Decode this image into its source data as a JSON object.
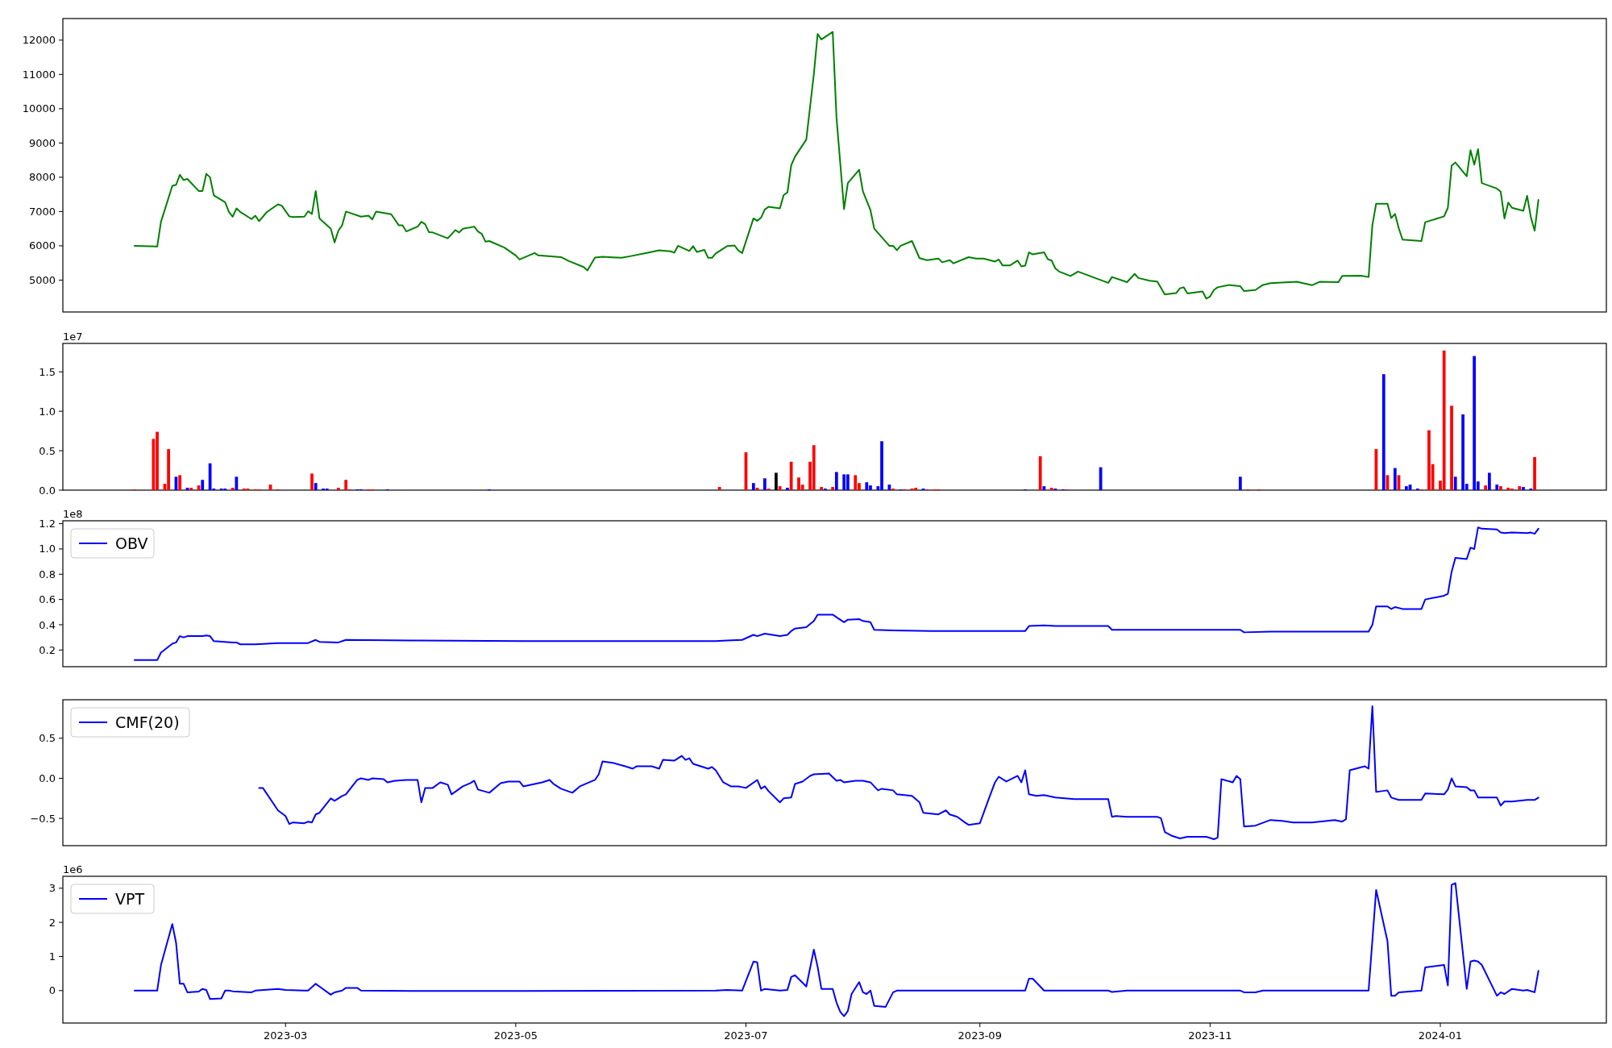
{
  "chart_data": [
    {
      "type": "line",
      "xlim": [
        "2023-01-01",
        "2024-02-14"
      ],
      "ylim": [
        4070,
        12630
      ],
      "yticks": [
        5000,
        6000,
        7000,
        8000,
        9000,
        10000,
        11000,
        12000
      ],
      "tick_labels": "y",
      "series": [
        {
          "color": "#008000",
          "x": [
            "2023-01-20",
            "2023-01-26",
            "2023-01-27",
            "2023-01-30",
            "2023-01-31",
            "2023-02-01",
            "2023-02-02",
            "2023-02-03",
            "2023-02-06",
            "2023-02-07",
            "2023-02-08",
            "2023-02-09",
            "2023-02-10",
            "2023-02-13",
            "2023-02-14",
            "2023-02-15",
            "2023-02-16",
            "2023-02-17",
            "2023-02-20",
            "2023-02-21",
            "2023-02-22",
            "2023-02-24",
            "2023-02-27",
            "2023-02-28",
            "2023-03-02",
            "2023-03-03",
            "2023-03-06",
            "2023-03-07",
            "2023-03-08",
            "2023-03-09",
            "2023-03-10",
            "2023-03-13",
            "2023-03-14",
            "2023-03-15",
            "2023-03-16",
            "2023-03-17",
            "2023-03-21",
            "2023-03-23",
            "2023-03-24",
            "2023-03-25",
            "2023-03-29",
            "2023-03-31",
            "2023-04-01",
            "2023-04-02",
            "2023-04-05",
            "2023-04-06",
            "2023-04-07",
            "2023-04-08",
            "2023-04-09",
            "2023-04-13",
            "2023-04-15",
            "2023-04-16",
            "2023-04-17",
            "2023-04-20",
            "2023-04-21",
            "2023-04-22",
            "2023-04-23",
            "2023-04-24",
            "2023-04-28",
            "2023-05-01",
            "2023-05-02",
            "2023-05-06",
            "2023-05-07",
            "2023-05-13",
            "2023-05-15",
            "2023-05-19",
            "2023-05-20",
            "2023-05-22",
            "2023-05-24",
            "2023-05-29",
            "2023-05-31",
            "2023-06-05",
            "2023-06-08",
            "2023-06-11",
            "2023-06-12",
            "2023-06-13",
            "2023-06-16",
            "2023-06-17",
            "2023-06-18",
            "2023-06-20",
            "2023-06-21",
            "2023-06-22",
            "2023-06-23",
            "2023-06-26",
            "2023-06-28",
            "2023-06-29",
            "2023-06-30",
            "2023-07-03",
            "2023-07-04",
            "2023-07-05",
            "2023-07-06",
            "2023-07-07",
            "2023-07-10",
            "2023-07-11",
            "2023-07-12",
            "2023-07-13",
            "2023-07-14",
            "2023-07-17",
            "2023-07-19",
            "2023-07-20",
            "2023-07-21",
            "2023-07-24",
            "2023-07-25",
            "2023-07-27",
            "2023-07-28",
            "2023-07-31",
            "2023-08-01",
            "2023-08-03",
            "2023-08-04",
            "2023-08-08",
            "2023-08-09",
            "2023-08-10",
            "2023-08-11",
            "2023-08-14",
            "2023-08-16",
            "2023-08-18",
            "2023-08-21",
            "2023-08-22",
            "2023-08-24",
            "2023-08-25",
            "2023-08-29",
            "2023-08-31",
            "2023-09-02",
            "2023-09-05",
            "2023-09-06",
            "2023-09-07",
            "2023-09-09",
            "2023-09-11",
            "2023-09-12",
            "2023-09-13",
            "2023-09-14",
            "2023-09-15",
            "2023-09-18",
            "2023-09-19",
            "2023-09-20",
            "2023-09-21",
            "2023-09-22",
            "2023-09-25",
            "2023-09-27",
            "2023-10-05",
            "2023-10-06",
            "2023-10-10",
            "2023-10-12",
            "2023-10-13",
            "2023-10-16",
            "2023-10-18",
            "2023-10-20",
            "2023-10-23",
            "2023-10-24",
            "2023-10-25",
            "2023-10-26",
            "2023-10-30",
            "2023-10-31",
            "2023-11-01",
            "2023-11-02",
            "2023-11-03",
            "2023-11-06",
            "2023-11-09",
            "2023-11-10",
            "2023-11-13",
            "2023-11-15",
            "2023-11-17",
            "2023-11-22",
            "2023-11-24",
            "2023-11-28",
            "2023-11-30",
            "2023-12-05",
            "2023-12-06",
            "2023-12-11",
            "2023-12-13",
            "2023-12-14",
            "2023-12-15",
            "2023-12-18",
            "2023-12-19",
            "2023-12-20",
            "2023-12-21",
            "2023-12-22",
            "2023-12-27",
            "2023-12-28",
            "2024-01-02",
            "2024-01-03",
            "2024-01-04",
            "2024-01-05",
            "2024-01-08",
            "2024-01-09",
            "2024-01-10",
            "2024-01-11",
            "2024-01-12",
            "2024-01-16",
            "2024-01-17",
            "2024-01-18",
            "2024-01-19",
            "2024-01-20",
            "2024-01-23",
            "2024-01-24",
            "2024-01-25",
            "2024-01-26",
            "2024-01-27"
          ],
          "values": [
            6000,
            5980,
            6700,
            7750,
            7780,
            8070,
            7920,
            7950,
            7600,
            7600,
            8100,
            8000,
            7470,
            7270,
            6990,
            6850,
            7090,
            6990,
            6780,
            6880,
            6720,
            6980,
            7210,
            7170,
            6860,
            6840,
            6850,
            7010,
            6930,
            7600,
            6800,
            6500,
            6100,
            6440,
            6600,
            7000,
            6850,
            6880,
            6770,
            7000,
            6920,
            6600,
            6600,
            6420,
            6560,
            6700,
            6630,
            6400,
            6390,
            6220,
            6460,
            6390,
            6500,
            6560,
            6420,
            6350,
            6120,
            6140,
            5950,
            5720,
            5600,
            5790,
            5720,
            5670,
            5560,
            5380,
            5280,
            5660,
            5680,
            5650,
            5690,
            5800,
            5870,
            5840,
            5800,
            6000,
            5850,
            5990,
            5820,
            5880,
            5650,
            5650,
            5780,
            5990,
            6010,
            5860,
            5790,
            6800,
            6730,
            6820,
            7060,
            7140,
            7090,
            7480,
            7560,
            8350,
            8600,
            9100,
            11010,
            12180,
            12020,
            12240,
            9740,
            7070,
            7830,
            8220,
            7590,
            7040,
            6500,
            6000,
            6000,
            5870,
            6000,
            6140,
            5640,
            5580,
            5630,
            5520,
            5580,
            5490,
            5670,
            5630,
            5630,
            5540,
            5600,
            5430,
            5430,
            5570,
            5400,
            5420,
            5810,
            5750,
            5810,
            5610,
            5570,
            5340,
            5250,
            5120,
            5250,
            4920,
            5090,
            4940,
            5180,
            5060,
            4980,
            4960,
            4580,
            4620,
            4760,
            4790,
            4610,
            4670,
            4460,
            4520,
            4710,
            4790,
            4860,
            4820,
            4680,
            4710,
            4860,
            4910,
            4940,
            4950,
            4850,
            4950,
            4940,
            5120,
            5130,
            5090,
            6600,
            7230,
            7230,
            6810,
            6930,
            6510,
            6180,
            6140,
            6690,
            6860,
            7110,
            8340,
            8430,
            8030,
            8790,
            8370,
            8820,
            7830,
            7670,
            7580,
            6800,
            7260,
            7110,
            7020,
            7460,
            6830,
            6440,
            7340
          ]
        }
      ]
    },
    {
      "type": "bar",
      "xlim": [
        "2023-01-01",
        "2024-02-14"
      ],
      "ylim": [
        0,
        1.86
      ],
      "yticks": [
        {
          "value": 0,
          "label": "0.0"
        },
        {
          "value": 0.5,
          "label": "0.5"
        },
        {
          "value": 1,
          "label": "1.0"
        },
        {
          "value": 1.5,
          "label": "1.5"
        }
      ],
      "tick_labels": "y",
      "annotations": [
        "1e7"
      ],
      "x": [
        "2023-01-20",
        "2023-01-25",
        "2023-01-26",
        "2023-01-28",
        "2023-01-29",
        "2023-01-31",
        "2023-02-01",
        "2023-02-03",
        "2023-02-04",
        "2023-02-06",
        "2023-02-07",
        "2023-02-09",
        "2023-02-10",
        "2023-02-12",
        "2023-02-13",
        "2023-02-15",
        "2023-02-16",
        "2023-02-18",
        "2023-02-19",
        "2023-02-21",
        "2023-02-22",
        "2023-02-25",
        "2023-02-27",
        "2023-03-08",
        "2023-03-09",
        "2023-03-11",
        "2023-03-12",
        "2023-03-15",
        "2023-03-17",
        "2023-03-18",
        "2023-03-20",
        "2023-03-21",
        "2023-03-23",
        "2023-03-24",
        "2023-03-28",
        "2023-04-24",
        "2023-06-24",
        "2023-07-01",
        "2023-07-03",
        "2023-07-04",
        "2023-07-06",
        "2023-07-07",
        "2023-07-09",
        "2023-07-10",
        "2023-07-12",
        "2023-07-13",
        "2023-07-15",
        "2023-07-16",
        "2023-07-18",
        "2023-07-19",
        "2023-07-21",
        "2023-07-22",
        "2023-07-24",
        "2023-07-25",
        "2023-07-27",
        "2023-07-28",
        "2023-07-30",
        "2023-07-31",
        "2023-08-02",
        "2023-08-03",
        "2023-08-05",
        "2023-08-06",
        "2023-08-08",
        "2023-08-09",
        "2023-08-11",
        "2023-08-12",
        "2023-08-14",
        "2023-08-15",
        "2023-08-17",
        "2023-08-18",
        "2023-08-20",
        "2023-08-21",
        "2023-09-13",
        "2023-09-17",
        "2023-09-18",
        "2023-09-20",
        "2023-09-21",
        "2023-09-23",
        "2023-09-24",
        "2023-10-03",
        "2023-11-09",
        "2023-11-11",
        "2023-11-14",
        "2023-12-15",
        "2023-12-17",
        "2023-12-18",
        "2023-12-20",
        "2023-12-21",
        "2023-12-23",
        "2023-12-24",
        "2023-12-26",
        "2023-12-27",
        "2023-12-29",
        "2023-12-30",
        "2024-01-01",
        "2024-01-02",
        "2024-01-04",
        "2024-01-05",
        "2024-01-07",
        "2024-01-08",
        "2024-01-10",
        "2024-01-11",
        "2024-01-13",
        "2024-01-14",
        "2024-01-16",
        "2024-01-17",
        "2024-01-19",
        "2024-01-20",
        "2024-01-22",
        "2024-01-23",
        "2024-01-25",
        "2024-01-26"
      ],
      "values": [
        0.01,
        0.65,
        0.74,
        0.08,
        0.52,
        0.17,
        0.19,
        0.03,
        0.03,
        0.06,
        0.13,
        0.34,
        0.02,
        0.02,
        0.02,
        0.03,
        0.17,
        0.02,
        0.02,
        0.01,
        0.01,
        0.07,
        0.01,
        0.21,
        0.09,
        0.02,
        0.02,
        0.03,
        0.13,
        0.01,
        0.01,
        0.01,
        0.01,
        0.01,
        0.01,
        0.01,
        0.04,
        0.48,
        0.09,
        0.03,
        0.15,
        0.02,
        0.22,
        0.05,
        0.03,
        0.36,
        0.16,
        0.07,
        0.36,
        0.57,
        0.04,
        0.02,
        0.04,
        0.23,
        0.2,
        0.2,
        0.19,
        0.09,
        0.1,
        0.06,
        0.05,
        0.62,
        0.07,
        0.02,
        0.01,
        0.01,
        0.02,
        0.03,
        0.02,
        0.01,
        0.01,
        0.01,
        0.01,
        0.43,
        0.05,
        0.03,
        0.02,
        0.01,
        0.01,
        0.29,
        0.17,
        0.01,
        0.01,
        0.52,
        1.47,
        0.19,
        0.28,
        0.19,
        0.05,
        0.07,
        0.02,
        0.01,
        0.76,
        0.33,
        0.12,
        1.77,
        1.07,
        0.17,
        0.96,
        0.08,
        1.7,
        0.11,
        0.06,
        0.22,
        0.07,
        0.05,
        0.03,
        0.02,
        0.05,
        0.04,
        0.02,
        0.42
      ],
      "colors": [
        "#ff0000",
        "#ff0000",
        "#ff0000",
        "#ff0000",
        "#ff0000",
        "#0000ff",
        "#ff0000",
        "#0000ff",
        "#ff0000",
        "#ff0000",
        "#0000ff",
        "#0000ff",
        "#0000ff",
        "#0000ff",
        "#0000ff",
        "#ff0000",
        "#0000ff",
        "#ff0000",
        "#ff0000",
        "#ff0000",
        "#ff0000",
        "#ff0000",
        "#ff0000",
        "#ff0000",
        "#0000ff",
        "#0000ff",
        "#0000ff",
        "#ff0000",
        "#ff0000",
        "#ff0000",
        "#0000ff",
        "#0000ff",
        "#ff0000",
        "#ff0000",
        "#0000ff",
        "#0000ff",
        "#ff0000",
        "#ff0000",
        "#0000ff",
        "#ff0000",
        "#0000ff",
        "#ff0000",
        "#000000",
        "#ff0000",
        "#0000ff",
        "#ff0000",
        "#ff0000",
        "#ff0000",
        "#ff0000",
        "#ff0000",
        "#ff0000",
        "#0000ff",
        "#ff0000",
        "#0000ff",
        "#0000ff",
        "#0000ff",
        "#ff0000",
        "#ff0000",
        "#0000ff",
        "#0000ff",
        "#0000ff",
        "#0000ff",
        "#0000ff",
        "#ff0000",
        "#0000ff",
        "#ff0000",
        "#ff0000",
        "#ff0000",
        "#0000ff",
        "#ff0000",
        "#ff0000",
        "#ff0000",
        "#0000ff",
        "#ff0000",
        "#0000ff",
        "#ff0000",
        "#0000ff",
        "#0000ff",
        "#ff0000",
        "#0000ff",
        "#0000ff",
        "#ff0000",
        "#ff0000",
        "#ff0000",
        "#0000ff",
        "#ff0000",
        "#0000ff",
        "#ff0000",
        "#0000ff",
        "#0000ff",
        "#0000ff",
        "#ff0000",
        "#ff0000",
        "#ff0000",
        "#ff0000",
        "#ff0000",
        "#ff0000",
        "#0000ff",
        "#0000ff",
        "#0000ff",
        "#0000ff",
        "#0000ff",
        "#ff0000",
        "#0000ff",
        "#0000ff",
        "#ff0000",
        "#ff0000",
        "#ff0000",
        "#ff0000",
        "#0000ff",
        "#0000ff",
        "#ff0000"
      ]
    },
    {
      "type": "line",
      "xlim": [
        "2023-01-01",
        "2024-02-14"
      ],
      "ylim": [
        0.068,
        1.223
      ],
      "yticks": [
        0.2,
        0.4,
        0.6,
        0.8,
        {
          "value": 1,
          "label": "1.0"
        },
        1.2
      ],
      "tick_labels": "y",
      "legend": "top left",
      "annotations": [
        "1e8"
      ],
      "series": [
        {
          "name": "OBV",
          "color": "#0000ff",
          "x": [
            "2023-01-20",
            "2023-01-26",
            "2023-01-27",
            "2023-01-30",
            "2023-01-31",
            "2023-02-01",
            "2023-02-02",
            "2023-02-03",
            "2023-02-06",
            "2023-02-07",
            "2023-02-08",
            "2023-02-09",
            "2023-02-10",
            "2023-02-15",
            "2023-02-16",
            "2023-02-17",
            "2023-02-21",
            "2023-02-27",
            "2023-03-07",
            "2023-03-09",
            "2023-03-10",
            "2023-03-15",
            "2023-03-17",
            "2023-04-05",
            "2023-05-03",
            "2023-05-30",
            "2023-06-23",
            "2023-06-26",
            "2023-06-30",
            "2023-07-03",
            "2023-07-04",
            "2023-07-06",
            "2023-07-10",
            "2023-07-12",
            "2023-07-13",
            "2023-07-14",
            "2023-07-17",
            "2023-07-19",
            "2023-07-20",
            "2023-07-24",
            "2023-07-25",
            "2023-07-27",
            "2023-07-28",
            "2023-07-31",
            "2023-08-01",
            "2023-08-03",
            "2023-08-04",
            "2023-08-09",
            "2023-08-19",
            "2023-09-13",
            "2023-09-14",
            "2023-09-18",
            "2023-09-21",
            "2023-10-05",
            "2023-10-06",
            "2023-11-09",
            "2023-11-10",
            "2023-11-17",
            "2023-12-13",
            "2023-12-14",
            "2023-12-15",
            "2023-12-18",
            "2023-12-19",
            "2023-12-20",
            "2023-12-22",
            "2023-12-27",
            "2023-12-28",
            "2024-01-02",
            "2024-01-03",
            "2024-01-04",
            "2024-01-05",
            "2024-01-08",
            "2024-01-09",
            "2024-01-10",
            "2024-01-11",
            "2024-01-12",
            "2024-01-16",
            "2024-01-17",
            "2024-01-18",
            "2024-01-20",
            "2024-01-24",
            "2024-01-25",
            "2024-01-26",
            "2024-01-27"
          ],
          "values": [
            0.12,
            0.12,
            0.18,
            0.25,
            0.26,
            0.31,
            0.3,
            0.31,
            0.31,
            0.31,
            0.315,
            0.31,
            0.27,
            0.26,
            0.26,
            0.245,
            0.245,
            0.255,
            0.255,
            0.28,
            0.265,
            0.26,
            0.28,
            0.275,
            0.27,
            0.27,
            0.27,
            0.275,
            0.28,
            0.32,
            0.31,
            0.33,
            0.31,
            0.32,
            0.35,
            0.37,
            0.38,
            0.43,
            0.48,
            0.48,
            0.46,
            0.42,
            0.44,
            0.445,
            0.43,
            0.42,
            0.36,
            0.355,
            0.35,
            0.35,
            0.39,
            0.395,
            0.39,
            0.39,
            0.36,
            0.36,
            0.34,
            0.345,
            0.345,
            0.4,
            0.545,
            0.545,
            0.525,
            0.54,
            0.525,
            0.525,
            0.6,
            0.63,
            0.645,
            0.82,
            0.93,
            0.92,
            1.01,
            1.0,
            1.17,
            1.16,
            1.155,
            1.13,
            1.125,
            1.13,
            1.125,
            1.13,
            1.12,
            1.16
          ]
        }
      ]
    },
    {
      "type": "line",
      "xlim": [
        "2023-01-01",
        "2024-02-14"
      ],
      "ylim": [
        -0.84,
        0.98
      ],
      "yticks": [
        {
          "value": -0.5,
          "label": "−0.5"
        },
        {
          "value": 0,
          "label": "0.0"
        },
        0.5
      ],
      "tick_labels": "y",
      "legend": "top left",
      "series": [
        {
          "name": "CMF(20)",
          "color": "#0000ff",
          "x": [
            "2023-02-22",
            "2023-02-23",
            "2023-02-27",
            "2023-03-01",
            "2023-03-02",
            "2023-03-03",
            "2023-03-06",
            "2023-03-07",
            "2023-03-08",
            "2023-03-09",
            "2023-03-10",
            "2023-03-13",
            "2023-03-14",
            "2023-03-16",
            "2023-03-17",
            "2023-03-20",
            "2023-03-21",
            "2023-03-23",
            "2023-03-24",
            "2023-03-27",
            "2023-03-28",
            "2023-03-30",
            "2023-04-02",
            "2023-04-05",
            "2023-04-06",
            "2023-04-07",
            "2023-04-09",
            "2023-04-11",
            "2023-04-13",
            "2023-04-14",
            "2023-04-17",
            "2023-04-19",
            "2023-04-20",
            "2023-04-21",
            "2023-04-24",
            "2023-04-27",
            "2023-04-29",
            "2023-05-02",
            "2023-05-03",
            "2023-05-06",
            "2023-05-08",
            "2023-05-10",
            "2023-05-11",
            "2023-05-13",
            "2023-05-16",
            "2023-05-18",
            "2023-05-22",
            "2023-05-23",
            "2023-05-24",
            "2023-05-27",
            "2023-05-30",
            "2023-06-01",
            "2023-06-02",
            "2023-06-06",
            "2023-06-08",
            "2023-06-09",
            "2023-06-12",
            "2023-06-14",
            "2023-06-15",
            "2023-06-16",
            "2023-06-17",
            "2023-06-21",
            "2023-06-22",
            "2023-06-23",
            "2023-06-25",
            "2023-06-27",
            "2023-06-29",
            "2023-07-01",
            "2023-07-04",
            "2023-07-05",
            "2023-07-06",
            "2023-07-07",
            "2023-07-10",
            "2023-07-11",
            "2023-07-13",
            "2023-07-14",
            "2023-07-16",
            "2023-07-18",
            "2023-07-19",
            "2023-07-23",
            "2023-07-25",
            "2023-07-26",
            "2023-07-27",
            "2023-07-30",
            "2023-08-01",
            "2023-08-03",
            "2023-08-05",
            "2023-08-06",
            "2023-08-09",
            "2023-08-10",
            "2023-08-14",
            "2023-08-16",
            "2023-08-17",
            "2023-08-21",
            "2023-08-23",
            "2023-08-24",
            "2023-08-26",
            "2023-08-28",
            "2023-08-29",
            "2023-09-01",
            "2023-09-03",
            "2023-09-05",
            "2023-09-06",
            "2023-09-08",
            "2023-09-11",
            "2023-09-12",
            "2023-09-13",
            "2023-09-14",
            "2023-09-16",
            "2023-09-18",
            "2023-09-21",
            "2023-09-26",
            "2023-10-05",
            "2023-10-06",
            "2023-10-07",
            "2023-10-10",
            "2023-10-18",
            "2023-10-19",
            "2023-10-20",
            "2023-10-22",
            "2023-10-24",
            "2023-10-26",
            "2023-10-31",
            "2023-11-02",
            "2023-11-03",
            "2023-11-04",
            "2023-11-07",
            "2023-11-08",
            "2023-11-09",
            "2023-11-10",
            "2023-11-13",
            "2023-11-17",
            "2023-11-20",
            "2023-11-23",
            "2023-11-28",
            "2023-12-04",
            "2023-12-06",
            "2023-12-07",
            "2023-12-08",
            "2023-12-12",
            "2023-12-13",
            "2023-12-14",
            "2023-12-15",
            "2023-12-18",
            "2023-12-19",
            "2023-12-21",
            "2023-12-27",
            "2023-12-28",
            "2024-01-02",
            "2024-01-03",
            "2024-01-04",
            "2024-01-05",
            "2024-01-08",
            "2024-01-09",
            "2024-01-10",
            "2024-01-11",
            "2024-01-16",
            "2024-01-17",
            "2024-01-18",
            "2024-01-20",
            "2024-01-24",
            "2024-01-26",
            "2024-01-27"
          ],
          "values": [
            -0.12,
            -0.12,
            -0.4,
            -0.47,
            -0.57,
            -0.55,
            -0.56,
            -0.54,
            -0.55,
            -0.45,
            -0.43,
            -0.25,
            -0.28,
            -0.22,
            -0.2,
            -0.02,
            0.0,
            -0.02,
            0.0,
            -0.01,
            -0.05,
            -0.03,
            -0.02,
            -0.02,
            -0.3,
            -0.12,
            -0.12,
            -0.05,
            -0.08,
            -0.2,
            -0.1,
            -0.06,
            -0.03,
            -0.14,
            -0.18,
            -0.06,
            -0.04,
            -0.04,
            -0.1,
            -0.07,
            -0.05,
            -0.02,
            -0.07,
            -0.13,
            -0.18,
            -0.1,
            -0.02,
            0.05,
            0.21,
            0.19,
            0.15,
            0.12,
            0.15,
            0.15,
            0.12,
            0.23,
            0.22,
            0.28,
            0.23,
            0.25,
            0.18,
            0.12,
            0.14,
            0.1,
            -0.05,
            -0.1,
            -0.1,
            -0.12,
            -0.02,
            -0.13,
            -0.1,
            -0.16,
            -0.3,
            -0.25,
            -0.24,
            -0.07,
            -0.04,
            0.03,
            0.05,
            0.06,
            -0.03,
            -0.02,
            -0.05,
            -0.03,
            -0.03,
            -0.05,
            -0.15,
            -0.13,
            -0.15,
            -0.2,
            -0.22,
            -0.3,
            -0.43,
            -0.45,
            -0.4,
            -0.45,
            -0.48,
            -0.55,
            -0.58,
            -0.56,
            -0.3,
            -0.05,
            0.02,
            -0.04,
            0.03,
            -0.05,
            0.1,
            -0.2,
            -0.22,
            -0.21,
            -0.24,
            -0.26,
            -0.26,
            -0.48,
            -0.47,
            -0.48,
            -0.48,
            -0.5,
            -0.67,
            -0.72,
            -0.75,
            -0.73,
            -0.73,
            -0.76,
            -0.74,
            -0.01,
            -0.05,
            0.03,
            -0.01,
            -0.6,
            -0.59,
            -0.52,
            -0.53,
            -0.55,
            -0.55,
            -0.52,
            -0.54,
            -0.51,
            0.1,
            0.15,
            0.12,
            0.9,
            -0.17,
            -0.15,
            -0.24,
            -0.27,
            -0.27,
            -0.19,
            -0.2,
            -0.14,
            0.0,
            -0.1,
            -0.11,
            -0.15,
            -0.15,
            -0.24,
            -0.24,
            -0.34,
            -0.29,
            -0.29,
            -0.27,
            -0.27,
            -0.24
          ]
        }
      ]
    },
    {
      "type": "line",
      "xlim": [
        "2023-01-01",
        "2024-02-14"
      ],
      "ylim": [
        -0.95,
        3.35
      ],
      "yticks": [
        0,
        1,
        2,
        3
      ],
      "xticks": [
        {
          "value": "2023-03-01",
          "label": "2023-03"
        },
        {
          "value": "2023-05-01",
          "label": "2023-05"
        },
        {
          "value": "2023-07-01",
          "label": "2023-07"
        },
        {
          "value": "2023-09-01",
          "label": "2023-09"
        },
        {
          "value": "2023-11-01",
          "label": "2023-11"
        },
        {
          "value": "2024-01-01",
          "label": "2024-01"
        }
      ],
      "legend": "top left",
      "annotations": [
        "1e6"
      ],
      "series": [
        {
          "name": "VPT",
          "color": "#0000ff",
          "x": [
            "2023-01-20",
            "2023-01-26",
            "2023-01-27",
            "2023-01-30",
            "2023-01-31",
            "2023-02-01",
            "2023-02-02",
            "2023-02-03",
            "2023-02-06",
            "2023-02-07",
            "2023-02-08",
            "2023-02-09",
            "2023-02-12",
            "2023-02-13",
            "2023-02-14",
            "2023-02-15",
            "2023-02-20",
            "2023-02-21",
            "2023-02-27",
            "2023-03-01",
            "2023-03-06",
            "2023-03-07",
            "2023-03-09",
            "2023-03-10",
            "2023-03-13",
            "2023-03-14",
            "2023-03-16",
            "2023-03-17",
            "2023-03-20",
            "2023-03-21",
            "2023-04-05",
            "2023-05-03",
            "2023-06-23",
            "2023-06-26",
            "2023-06-30",
            "2023-07-03",
            "2023-07-04",
            "2023-07-05",
            "2023-07-06",
            "2023-07-10",
            "2023-07-12",
            "2023-07-13",
            "2023-07-14",
            "2023-07-17",
            "2023-07-19",
            "2023-07-20",
            "2023-07-21",
            "2023-07-24",
            "2023-07-25",
            "2023-07-26",
            "2023-07-27",
            "2023-07-28",
            "2023-07-29",
            "2023-07-31",
            "2023-08-01",
            "2023-08-02",
            "2023-08-03",
            "2023-08-04",
            "2023-08-07",
            "2023-08-09",
            "2023-08-10",
            "2023-08-19",
            "2023-09-13",
            "2023-09-14",
            "2023-09-15",
            "2023-09-18",
            "2023-10-05",
            "2023-10-06",
            "2023-10-10",
            "2023-11-09",
            "2023-11-10",
            "2023-11-13",
            "2023-11-15",
            "2023-12-13",
            "2023-12-15",
            "2023-12-18",
            "2023-12-19",
            "2023-12-20",
            "2023-12-21",
            "2023-12-27",
            "2023-12-28",
            "2024-01-02",
            "2024-01-03",
            "2024-01-04",
            "2024-01-05",
            "2024-01-08",
            "2024-01-09",
            "2024-01-10",
            "2024-01-11",
            "2024-01-12",
            "2024-01-16",
            "2024-01-17",
            "2024-01-18",
            "2024-01-20",
            "2024-01-23",
            "2024-01-24",
            "2024-01-26",
            "2024-01-27"
          ],
          "values": [
            0,
            0,
            0.75,
            1.95,
            1.4,
            0.2,
            0.2,
            -0.05,
            -0.03,
            0.05,
            0.02,
            -0.25,
            -0.23,
            0,
            0,
            -0.02,
            -0.05,
            0,
            0.05,
            0.02,
            0,
            0,
            0.2,
            0.12,
            -0.12,
            -0.05,
            0,
            0.08,
            0.08,
            0,
            -0.01,
            -0.01,
            0,
            0.02,
            0,
            0.85,
            0.83,
            0,
            0.05,
            0,
            0.02,
            0.4,
            0.45,
            0.12,
            1.2,
            0.7,
            0.05,
            0.05,
            -0.35,
            -0.62,
            -0.75,
            -0.6,
            -0.1,
            0.25,
            -0.05,
            -0.1,
            0,
            -0.45,
            -0.48,
            -0.05,
            0,
            0,
            0,
            0.35,
            0.35,
            0,
            0,
            -0.04,
            0,
            0,
            -0.05,
            -0.05,
            0,
            0,
            2.95,
            1.45,
            -0.15,
            -0.15,
            -0.05,
            0,
            0.68,
            0.75,
            0.15,
            3.1,
            3.15,
            0.05,
            0.85,
            0.88,
            0.85,
            0.75,
            -0.15,
            -0.05,
            -0.1,
            0.05,
            0,
            0.02,
            -0.05,
            0.58
          ]
        }
      ]
    }
  ]
}
